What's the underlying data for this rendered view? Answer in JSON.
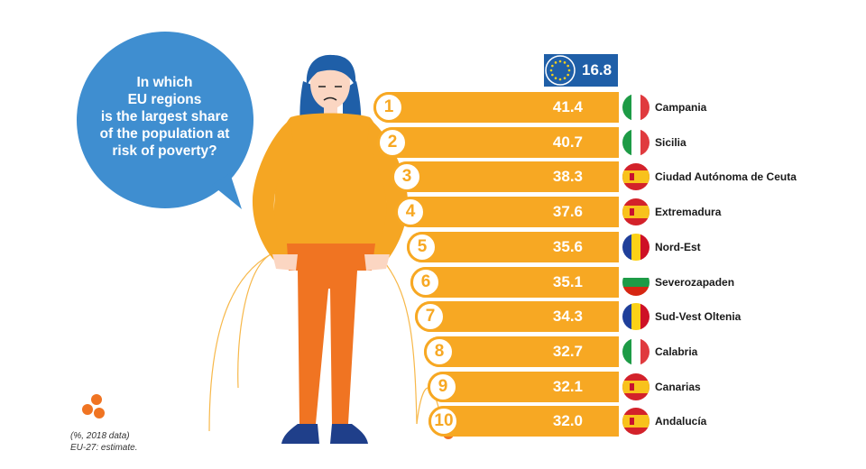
{
  "question": "In which\nEU regions\nis the largest share\nof the population at\nrisk of poverty?",
  "eu": {
    "label": "EU-27",
    "value": "16.8"
  },
  "colors": {
    "bar": "#f7a823",
    "eu_box": "#1f5fa8",
    "bubble": "#3f8ed0",
    "body": "#f5a623",
    "trousers": "#f07422",
    "hair": "#1f5fa8"
  },
  "note_line1": "(%, 2018 data)",
  "note_line2": "EU-27: estimate.",
  "chart_data": {
    "type": "bar",
    "title": "",
    "xlabel": "",
    "ylabel": "",
    "units": "%",
    "categories": [
      "Campania",
      "Sicilia",
      "Ciudad Autónoma de Ceuta",
      "Extremadura",
      "Nord-Est",
      "Severozapaden",
      "Sud-Vest Oltenia",
      "Calabria",
      "Canarias",
      "Andalucía"
    ],
    "ranks": [
      "1",
      "2",
      "3",
      "4",
      "5",
      "6",
      "7",
      "8",
      "9",
      "10"
    ],
    "values": [
      41.4,
      40.7,
      38.3,
      37.6,
      35.6,
      35.1,
      34.3,
      32.7,
      32.1,
      32.0
    ],
    "value_labels": [
      "41.4",
      "40.7",
      "38.3",
      "37.6",
      "35.6",
      "35.1",
      "34.3",
      "32.7",
      "32.1",
      "32.0"
    ],
    "flags": [
      "italy-flag-icon",
      "italy-flag-icon",
      "spain-flag-icon",
      "spain-flag-icon",
      "romania-flag-icon",
      "bulgaria-flag-icon",
      "romania-flag-icon",
      "italy-flag-icon",
      "spain-flag-icon",
      "spain-flag-icon"
    ],
    "reference": {
      "name": "EU-27",
      "value": 16.8
    },
    "legend": "none",
    "grid": false
  }
}
